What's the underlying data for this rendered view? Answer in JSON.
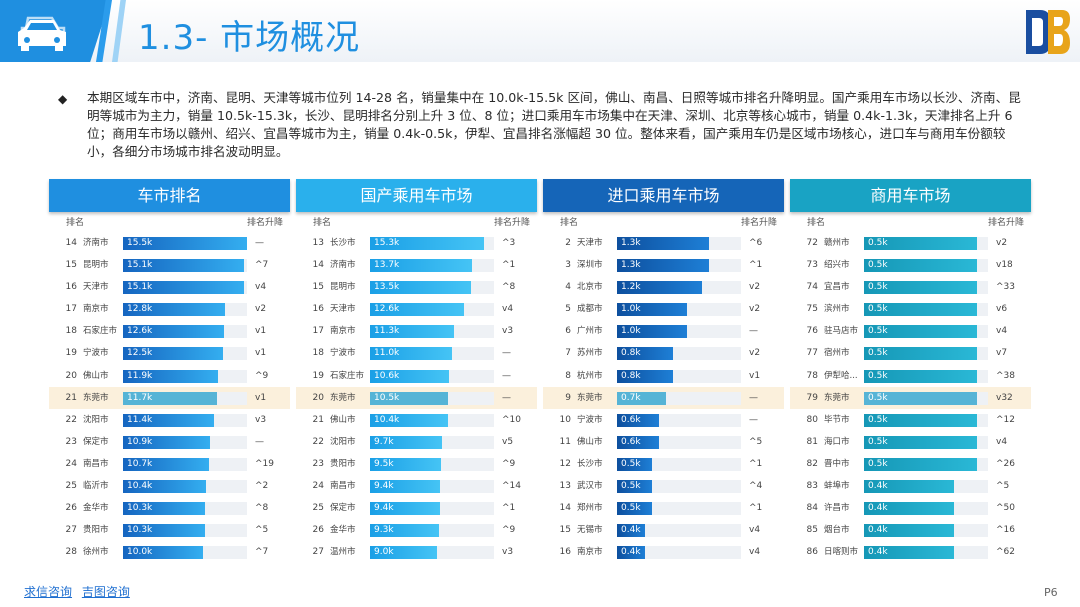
{
  "title": "1.3- 市场概况",
  "summary": "本期区域车市中，济南、昆明、天津等城市位列 14-28 名，销量集中在 10.0k-15.5k 区间，佛山、南昌、日照等城市排名升降明显。国产乘用车市场以长沙、济南、昆明等城市为主力，销量 10.5k-15.3k，长沙、昆明排名分别上升 3 位、8 位；进口乘用车市场集中在天津、深圳、北京等核心城市，销量 0.4k-1.3k，天津排名上升 6 位；商用车市场以赣州、绍兴、宜昌等城市为主，销量 0.4k-0.5k，伊犁、宜昌排名涨幅超 30 位。整体来看，国产乘用车仍是区域市场核心，进口车与商用车份额较小，各细分市场城市排名波动明显。",
  "colors": {
    "title": "#1f8fe0",
    "highlight_row": "#fbf0dc",
    "highlight_bar": "#56b4d6"
  },
  "panels": [
    {
      "title": "车市排名",
      "rank_label": "排名",
      "change_label": "排名升降",
      "header_color": "#1f8fe0",
      "bar_from": "#1565c0",
      "bar_to": "#34aef0",
      "scale_max": 15.5,
      "rows": [
        {
          "rank": "14",
          "city": "济南市",
          "value": 15.5,
          "label": "15.5k",
          "change": "—"
        },
        {
          "rank": "15",
          "city": "昆明市",
          "value": 15.1,
          "label": "15.1k",
          "change": "^7"
        },
        {
          "rank": "16",
          "city": "天津市",
          "value": 15.1,
          "label": "15.1k",
          "change": "v4"
        },
        {
          "rank": "17",
          "city": "南京市",
          "value": 12.8,
          "label": "12.8k",
          "change": "v2"
        },
        {
          "rank": "18",
          "city": "石家庄市",
          "value": 12.6,
          "label": "12.6k",
          "change": "v1"
        },
        {
          "rank": "19",
          "city": "宁波市",
          "value": 12.5,
          "label": "12.5k",
          "change": "v1"
        },
        {
          "rank": "20",
          "city": "佛山市",
          "value": 11.9,
          "label": "11.9k",
          "change": "^9"
        },
        {
          "rank": "21",
          "city": "东莞市",
          "value": 11.7,
          "label": "11.7k",
          "change": "v1",
          "hl": true
        },
        {
          "rank": "22",
          "city": "沈阳市",
          "value": 11.4,
          "label": "11.4k",
          "change": "v3"
        },
        {
          "rank": "23",
          "city": "保定市",
          "value": 10.9,
          "label": "10.9k",
          "change": "—"
        },
        {
          "rank": "24",
          "city": "南昌市",
          "value": 10.7,
          "label": "10.7k",
          "change": "^19"
        },
        {
          "rank": "25",
          "city": "临沂市",
          "value": 10.4,
          "label": "10.4k",
          "change": "^2"
        },
        {
          "rank": "26",
          "city": "金华市",
          "value": 10.3,
          "label": "10.3k",
          "change": "^8"
        },
        {
          "rank": "27",
          "city": "贵阳市",
          "value": 10.3,
          "label": "10.3k",
          "change": "^5"
        },
        {
          "rank": "28",
          "city": "徐州市",
          "value": 10.0,
          "label": "10.0k",
          "change": "^7"
        }
      ]
    },
    {
      "title": "国产乘用车市场",
      "rank_label": "排名",
      "change_label": "排名升降",
      "header_color": "#2ab0ec",
      "bar_from": "#1a9fe6",
      "bar_to": "#45c4f5",
      "scale_max": 16.6,
      "rows": [
        {
          "rank": "13",
          "city": "长沙市",
          "value": 15.3,
          "label": "15.3k",
          "change": "^3"
        },
        {
          "rank": "14",
          "city": "济南市",
          "value": 13.7,
          "label": "13.7k",
          "change": "^1"
        },
        {
          "rank": "15",
          "city": "昆明市",
          "value": 13.5,
          "label": "13.5k",
          "change": "^8"
        },
        {
          "rank": "16",
          "city": "天津市",
          "value": 12.6,
          "label": "12.6k",
          "change": "v4"
        },
        {
          "rank": "17",
          "city": "南京市",
          "value": 11.3,
          "label": "11.3k",
          "change": "v3"
        },
        {
          "rank": "18",
          "city": "宁波市",
          "value": 11.0,
          "label": "11.0k",
          "change": "—"
        },
        {
          "rank": "19",
          "city": "石家庄市",
          "value": 10.6,
          "label": "10.6k",
          "change": "—"
        },
        {
          "rank": "20",
          "city": "东莞市",
          "value": 10.5,
          "label": "10.5k",
          "change": "—",
          "hl": true
        },
        {
          "rank": "21",
          "city": "佛山市",
          "value": 10.4,
          "label": "10.4k",
          "change": "^10"
        },
        {
          "rank": "22",
          "city": "沈阳市",
          "value": 9.7,
          "label": "9.7k",
          "change": "v5"
        },
        {
          "rank": "23",
          "city": "贵阳市",
          "value": 9.5,
          "label": "9.5k",
          "change": "^9"
        },
        {
          "rank": "24",
          "city": "南昌市",
          "value": 9.4,
          "label": "9.4k",
          "change": "^14"
        },
        {
          "rank": "25",
          "city": "保定市",
          "value": 9.4,
          "label": "9.4k",
          "change": "^1"
        },
        {
          "rank": "26",
          "city": "金华市",
          "value": 9.3,
          "label": "9.3k",
          "change": "^9"
        },
        {
          "rank": "27",
          "city": "温州市",
          "value": 9.0,
          "label": "9.0k",
          "change": "v3"
        }
      ]
    },
    {
      "title": "进口乘用车市场",
      "rank_label": "排名",
      "change_label": "排名升降",
      "header_color": "#1565b8",
      "bar_from": "#0d4f9e",
      "bar_to": "#1e7fd6",
      "scale_max": 1.76,
      "rows": [
        {
          "rank": "2",
          "city": "天津市",
          "value": 1.3,
          "label": "1.3k",
          "change": "^6"
        },
        {
          "rank": "3",
          "city": "深圳市",
          "value": 1.3,
          "label": "1.3k",
          "change": "^1"
        },
        {
          "rank": "4",
          "city": "北京市",
          "value": 1.2,
          "label": "1.2k",
          "change": "v2"
        },
        {
          "rank": "5",
          "city": "成都市",
          "value": 1.0,
          "label": "1.0k",
          "change": "v2"
        },
        {
          "rank": "6",
          "city": "广州市",
          "value": 1.0,
          "label": "1.0k",
          "change": "—"
        },
        {
          "rank": "7",
          "city": "苏州市",
          "value": 0.8,
          "label": "0.8k",
          "change": "v2"
        },
        {
          "rank": "8",
          "city": "杭州市",
          "value": 0.8,
          "label": "0.8k",
          "change": "v1"
        },
        {
          "rank": "9",
          "city": "东莞市",
          "value": 0.7,
          "label": "0.7k",
          "change": "—",
          "hl": true
        },
        {
          "rank": "10",
          "city": "宁波市",
          "value": 0.6,
          "label": "0.6k",
          "change": "—"
        },
        {
          "rank": "11",
          "city": "佛山市",
          "value": 0.6,
          "label": "0.6k",
          "change": "^5"
        },
        {
          "rank": "12",
          "city": "长沙市",
          "value": 0.5,
          "label": "0.5k",
          "change": "^1"
        },
        {
          "rank": "13",
          "city": "武汉市",
          "value": 0.5,
          "label": "0.5k",
          "change": "^4"
        },
        {
          "rank": "14",
          "city": "郑州市",
          "value": 0.5,
          "label": "0.5k",
          "change": "^1"
        },
        {
          "rank": "15",
          "city": "无锡市",
          "value": 0.4,
          "label": "0.4k",
          "change": "v4"
        },
        {
          "rank": "16",
          "city": "南京市",
          "value": 0.4,
          "label": "0.4k",
          "change": "v4"
        }
      ]
    },
    {
      "title": "商用车市场",
      "rank_label": "排名",
      "change_label": "排名升降",
      "header_color": "#19a3c4",
      "bar_from": "#1597b6",
      "bar_to": "#2ab8d6",
      "scale_max": 0.55,
      "rows": [
        {
          "rank": "72",
          "city": "赣州市",
          "value": 0.5,
          "label": "0.5k",
          "change": "v2"
        },
        {
          "rank": "73",
          "city": "绍兴市",
          "value": 0.5,
          "label": "0.5k",
          "change": "v18"
        },
        {
          "rank": "74",
          "city": "宜昌市",
          "value": 0.5,
          "label": "0.5k",
          "change": "^33"
        },
        {
          "rank": "75",
          "city": "滨州市",
          "value": 0.5,
          "label": "0.5k",
          "change": "v6"
        },
        {
          "rank": "76",
          "city": "驻马店市",
          "value": 0.5,
          "label": "0.5k",
          "change": "v4"
        },
        {
          "rank": "77",
          "city": "宿州市",
          "value": 0.5,
          "label": "0.5k",
          "change": "v7"
        },
        {
          "rank": "78",
          "city": "伊犁哈...",
          "value": 0.5,
          "label": "0.5k",
          "change": "^38"
        },
        {
          "rank": "79",
          "city": "东莞市",
          "value": 0.5,
          "label": "0.5k",
          "change": "v32",
          "hl": true
        },
        {
          "rank": "80",
          "city": "毕节市",
          "value": 0.5,
          "label": "0.5k",
          "change": "^12"
        },
        {
          "rank": "81",
          "city": "海口市",
          "value": 0.5,
          "label": "0.5k",
          "change": "v4"
        },
        {
          "rank": "82",
          "city": "晋中市",
          "value": 0.5,
          "label": "0.5k",
          "change": "^26"
        },
        {
          "rank": "83",
          "city": "蚌埠市",
          "value": 0.4,
          "label": "0.4k",
          "change": "^5"
        },
        {
          "rank": "84",
          "city": "许昌市",
          "value": 0.4,
          "label": "0.4k",
          "change": "^50"
        },
        {
          "rank": "85",
          "city": "烟台市",
          "value": 0.4,
          "label": "0.4k",
          "change": "^16"
        },
        {
          "rank": "86",
          "city": "日喀则市",
          "value": 0.4,
          "label": "0.4k",
          "change": "^62"
        }
      ]
    }
  ],
  "footer": {
    "link1": "求信咨询",
    "link2": "吉图咨询"
  },
  "page_number": "P6"
}
